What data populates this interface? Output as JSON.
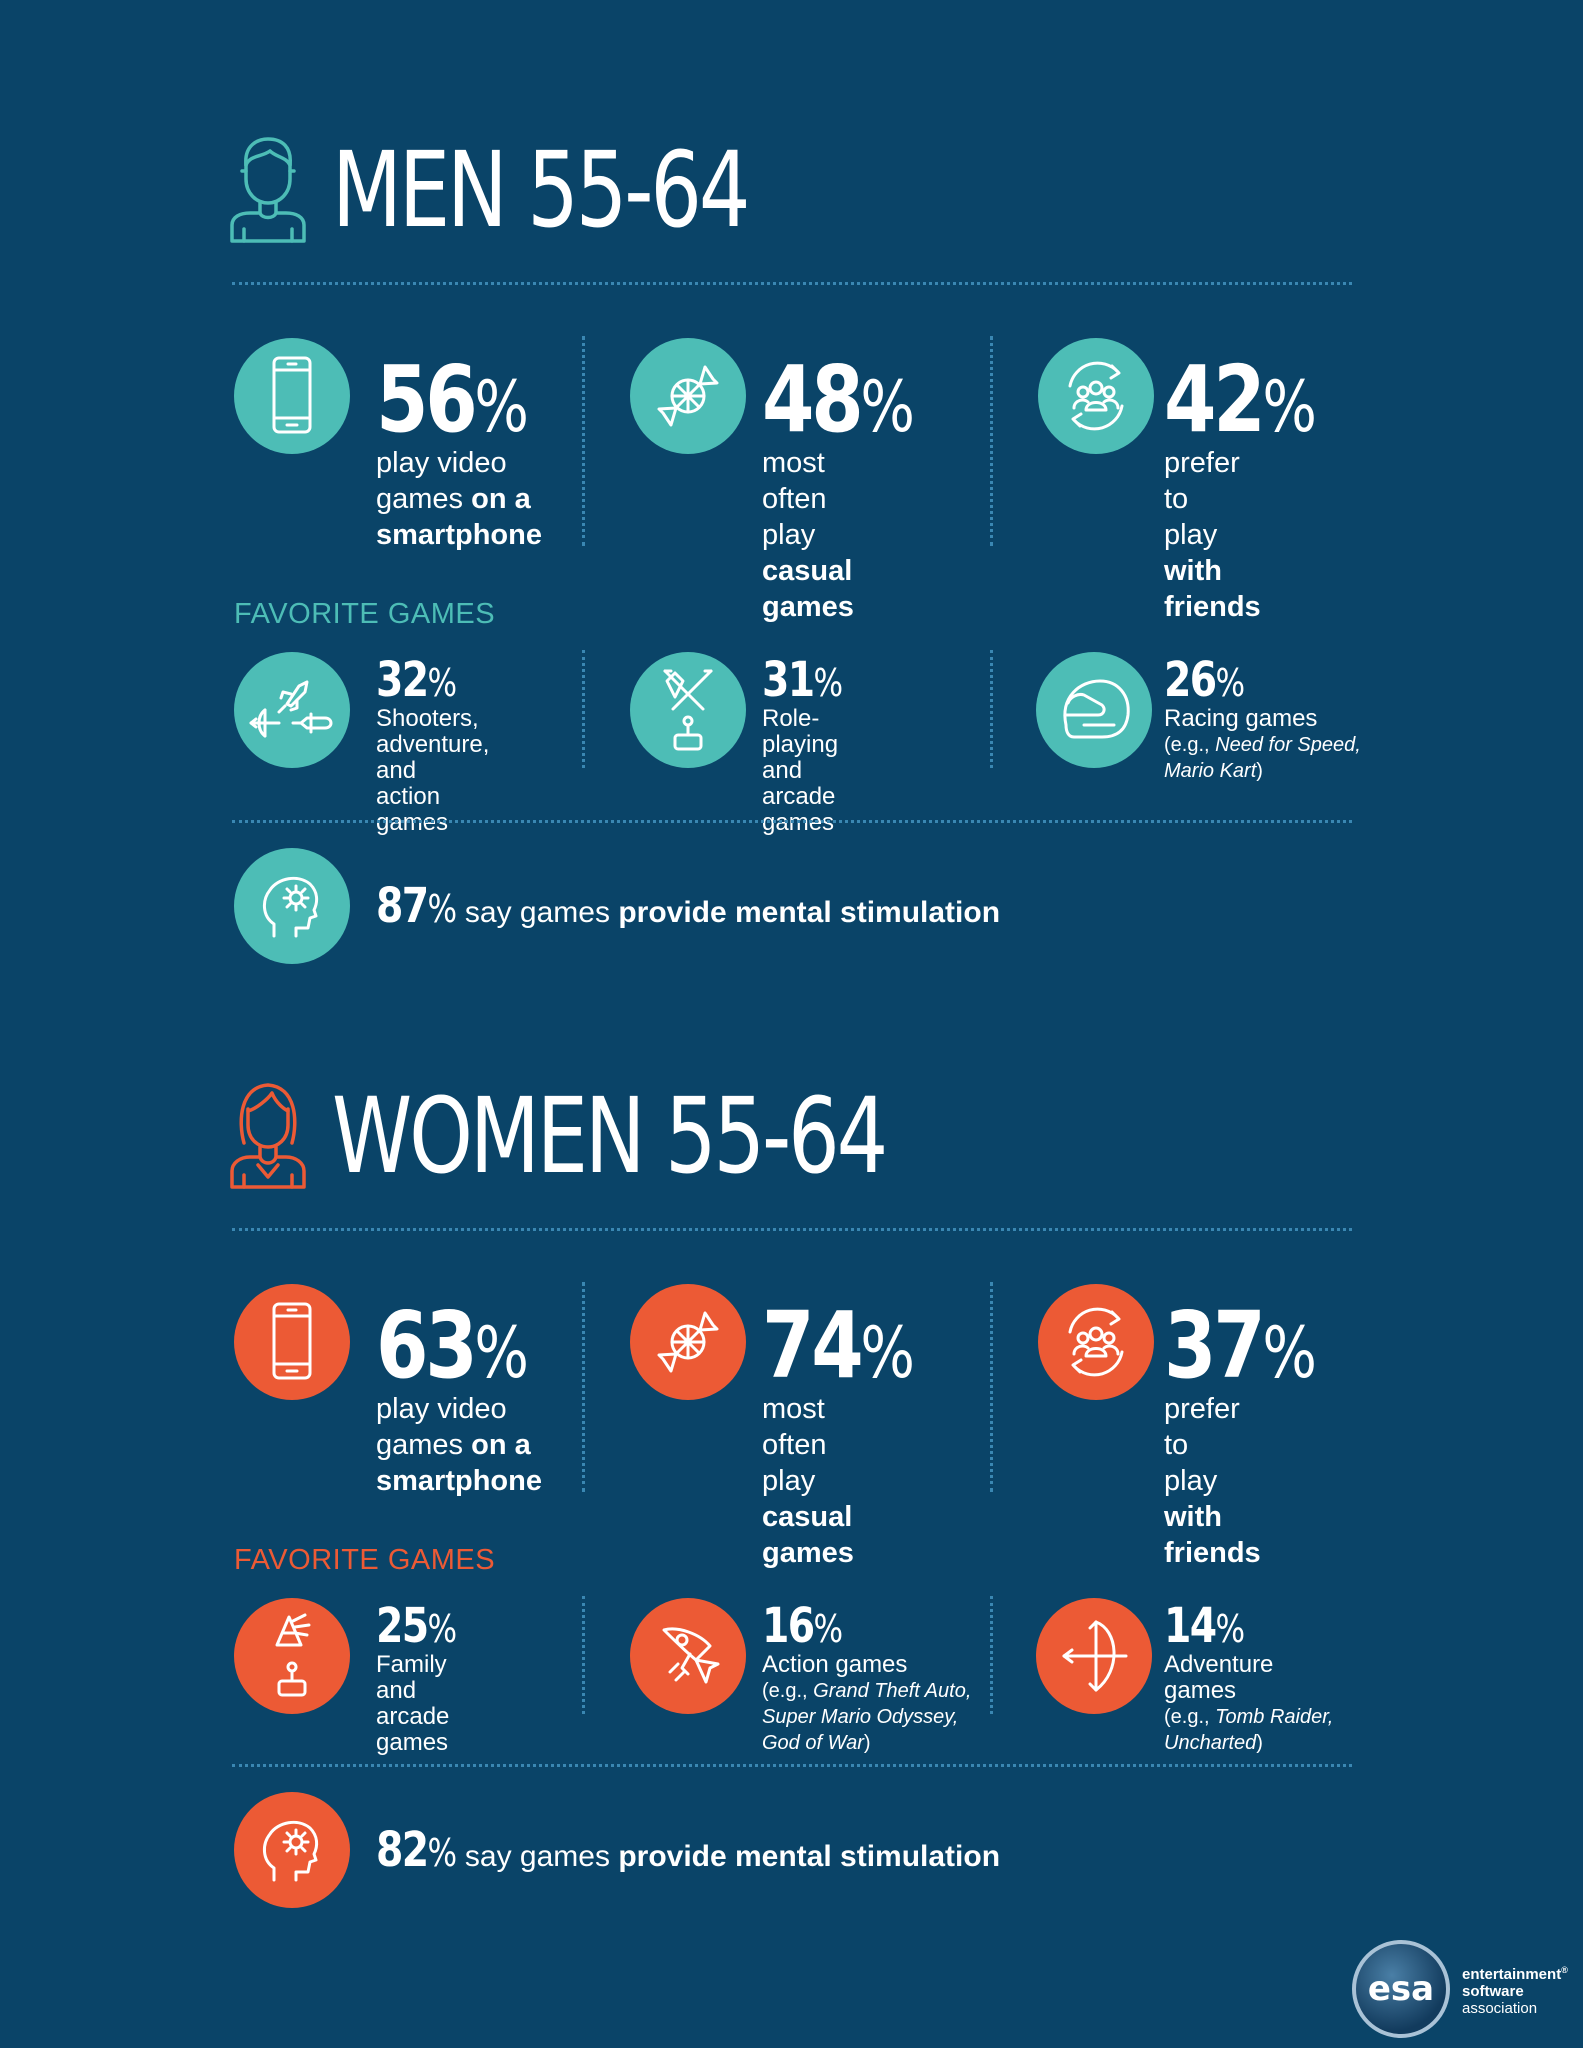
{
  "colors": {
    "background": "#0a4468",
    "men_accent": "#4dbdb6",
    "women_accent": "#ec5a35",
    "divider": "#3a87b2"
  },
  "men": {
    "title": "MEN 55-64",
    "person_icon": "man-icon",
    "stats": [
      {
        "icon": "smartphone-icon",
        "value": "56",
        "pct": "%",
        "line1": "play video",
        "line2a": "games ",
        "line2b": "on a",
        "line3": "smartphone"
      },
      {
        "icon": "candy-icon",
        "value": "48",
        "pct": "%",
        "line1": "most often",
        "line2a": "play ",
        "line2b": "casual",
        "line3": "games"
      },
      {
        "icon": "friends-icon",
        "value": "42",
        "pct": "%",
        "line1": "prefer to",
        "line2a": "play ",
        "line2b": "with",
        "line3": "friends"
      }
    ],
    "favorite_label": "FAVORITE GAMES",
    "favorites": [
      {
        "icon": "shooter-adventure-icon",
        "value": "32",
        "pct": "%",
        "lines": [
          "Shooters,",
          "adventure, and",
          "action games"
        ],
        "example_prefix": "",
        "example_italic": "",
        "example_suffix": ""
      },
      {
        "icon": "role-playing-arcade-icon",
        "value": "31",
        "pct": "%",
        "lines": [
          "Role-playing",
          "and arcade",
          "games"
        ],
        "example_prefix": "",
        "example_italic": "",
        "example_suffix": ""
      },
      {
        "icon": "helmet-icon",
        "value": "26",
        "pct": "%",
        "lines": [
          "Racing games"
        ],
        "example_prefix": "(e.g., ",
        "example_italic": "Need for Speed, Mario Kart",
        "example_suffix": ")"
      }
    ],
    "mental": {
      "icon": "brain-gear-icon",
      "value": "87",
      "pct": "%",
      "text_a": "say games ",
      "text_b": "provide mental stimulation"
    }
  },
  "women": {
    "title": "WOMEN 55-64",
    "person_icon": "woman-icon",
    "stats": [
      {
        "icon": "smartphone-icon",
        "value": "63",
        "pct": "%",
        "line1": "play video",
        "line2a": "games ",
        "line2b": "on a",
        "line3": "smartphone"
      },
      {
        "icon": "candy-icon",
        "value": "74",
        "pct": "%",
        "line1": "most often",
        "line2a": "play ",
        "line2b": "casual",
        "line3": "games"
      },
      {
        "icon": "friends-icon",
        "value": "37",
        "pct": "%",
        "line1": "prefer to",
        "line2a": "play ",
        "line2b": "with",
        "line3": "friends"
      }
    ],
    "favorite_label": "FAVORITE GAMES",
    "favorites": [
      {
        "icon": "family-arcade-icon",
        "value": "25",
        "pct": "%",
        "lines": [
          "Family and",
          "arcade games"
        ],
        "example_prefix": "",
        "example_italic": "",
        "example_suffix": ""
      },
      {
        "icon": "rocket-icon",
        "value": "16",
        "pct": "%",
        "lines": [
          "Action games"
        ],
        "example_prefix": "(e.g., ",
        "example_italic": "Grand Theft Auto, Super Mario Odyssey, God of War",
        "example_suffix": ")"
      },
      {
        "icon": "bow-arrow-icon",
        "value": "14",
        "pct": "%",
        "lines": [
          "Adventure",
          "games"
        ],
        "example_prefix": "(e.g., ",
        "example_italic": "Tomb Raider, Uncharted",
        "example_suffix": ")"
      }
    ],
    "mental": {
      "icon": "brain-gear-icon",
      "value": "82",
      "pct": "%",
      "text_a": "say games ",
      "text_b": "provide mental stimulation"
    }
  },
  "logo": {
    "mark": "esa",
    "line1": "entertainment",
    "reg": "®",
    "line2": "software",
    "line3": "association"
  }
}
